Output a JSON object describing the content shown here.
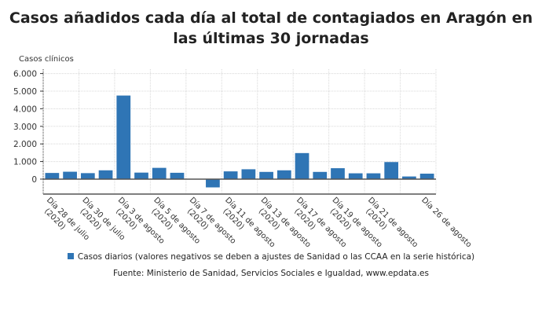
{
  "chart_data": {
    "type": "bar",
    "title": "Casos añadidos cada día al total de contagiados en Aragón en las últimas 30 jornadas",
    "ylabel": "Casos clínicos",
    "xlabel": "",
    "ylim": [
      -850,
      6250
    ],
    "yticks": [
      0,
      1000,
      2000,
      3000,
      4000,
      5000,
      6000
    ],
    "ytick_labels": [
      "0",
      "1.000",
      "2.000",
      "3.000",
      "4.000",
      "5.000",
      "6.000"
    ],
    "grid": true,
    "color": "#2f75b5",
    "categories": [
      "Día 28 de julio (2020)",
      "",
      "Día 30 de julio (2020)",
      "",
      "Día 3 de agosto (2020)",
      "",
      "Día 5 de agosto (2020)",
      "",
      "Día 7 de agosto (2020)",
      "",
      "Día 11 de agosto (2020)",
      "",
      "Día 13 de agosto (2020)",
      "",
      "Día 17 de agosto (2020)",
      "",
      "Día 19 de agosto (2020)",
      "",
      "Día 21 de agosto (2020)",
      "",
      "",
      "Día 26 de agosto"
    ],
    "values": [
      350,
      420,
      340,
      500,
      4750,
      370,
      640,
      360,
      0,
      -470,
      440,
      560,
      410,
      500,
      1480,
      410,
      620,
      330,
      330,
      970,
      150,
      310
    ],
    "legend": "Casos diarios (valores negativos se deben a ajustes de Sanidad o las CCAA en la serie histórica)",
    "legend_position": "bottom"
  },
  "source": "Fuente: Ministerio de Sanidad, Servicios Sociales e Igualdad, www.epdata.es"
}
